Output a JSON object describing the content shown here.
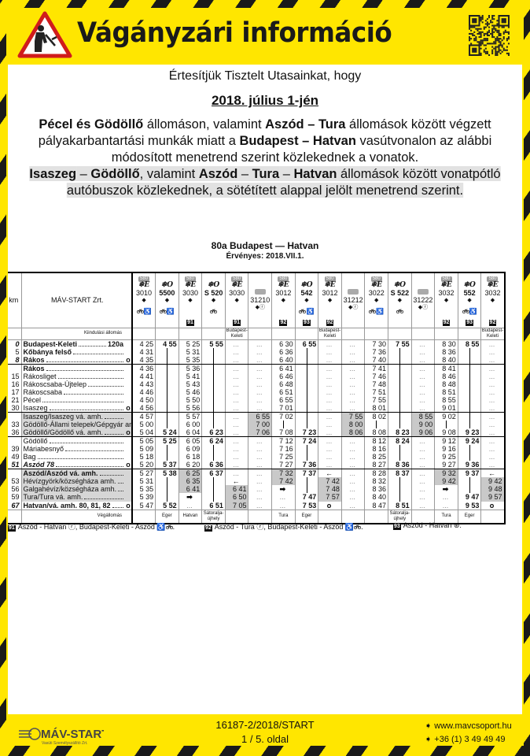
{
  "header": {
    "title": "Vágányzári információ"
  },
  "notice": {
    "intro": "Értesítjük Tisztelt Utasainkat, hogy",
    "date": "2018. július 1-jén",
    "lines": [
      [
        {
          "t": "Pécel és Gödöllő",
          "b": true
        },
        {
          "t": " állomáson, valamint ",
          "b": false
        },
        {
          "t": "Aszód – Tura",
          "b": true
        },
        {
          "t": " állomások között végzett",
          "b": false
        }
      ],
      [
        {
          "t": "pályakarbantartási munkák miatt a ",
          "b": false
        },
        {
          "t": "Budapest – Hatvan",
          "b": true
        },
        {
          "t": " vasútvonalon az alábbi",
          "b": false
        }
      ],
      [
        {
          "t": "módosított menetrend szerint közlekednek a vonatok.",
          "b": false
        }
      ],
      [
        {
          "t": "Isaszeg",
          "b": true,
          "hl": true
        },
        {
          "t": " – ",
          "b": false,
          "hl": true
        },
        {
          "t": "Gödöllő",
          "b": true,
          "hl": true
        },
        {
          "t": ", valamint ",
          "b": false,
          "hl": true
        },
        {
          "t": "Aszód",
          "b": true,
          "hl": true
        },
        {
          "t": " – ",
          "b": false,
          "hl": true
        },
        {
          "t": "Tura",
          "b": true,
          "hl": true
        },
        {
          "t": " – ",
          "b": false,
          "hl": true
        },
        {
          "t": "Hatvan",
          "b": true,
          "hl": true
        },
        {
          "t": " állomások között vonatpótló",
          "b": false,
          "hl": true
        }
      ],
      [
        {
          "t": "autóbuszok közlekednek, a sötétített alappal jelölt menetrend szerint.",
          "b": false,
          "hl": true
        }
      ]
    ]
  },
  "timetable": {
    "title": "80a Budapest — Hatvan",
    "valid": "Érvényes: 2018.VII.1.",
    "km_label": "km",
    "operator": "MÁV-START Zrt.",
    "origin_label": "Kiindulási állomás",
    "destination_label": "Végállomás",
    "stations": [
      {
        "km": "0",
        "name": "Budapest-Keleti",
        "bold": true,
        "ref": "120a",
        "kmi": true
      },
      {
        "km": "5",
        "name": "Kőbánya felső",
        "bold": true
      },
      {
        "km": "8",
        "name": "Rákos",
        "bold": true,
        "mark": "o",
        "kmi": true
      },
      {
        "km": "",
        "name": "Rákos",
        "bold": true
      },
      {
        "km": "15",
        "name": "Rákosliget"
      },
      {
        "km": "16",
        "name": "Rákoscsaba-Újtelep"
      },
      {
        "km": "17",
        "name": "Rákoscsaba"
      },
      {
        "km": "21",
        "name": "Pécel"
      },
      {
        "km": "30",
        "name": "Isaszeg",
        "mark": "o"
      },
      {
        "km": "",
        "name": "Isaszeg/Isaszeg vá. amh.",
        "shaded": true
      },
      {
        "km": "33",
        "name": "Gödöllő-Állami telepek/Gépgyár amh.",
        "shaded": true
      },
      {
        "km": "36",
        "name": "Gödöllő/Gödöllő vá. amh.",
        "mark": "o",
        "shaded": true
      },
      {
        "km": "",
        "name": "Gödöllő"
      },
      {
        "km": "39",
        "name": "Máriabesnyő"
      },
      {
        "km": "49",
        "name": "Bag"
      },
      {
        "km": "51",
        "name": "Aszód 78",
        "bold": true,
        "italic": true,
        "mark": "o",
        "kmi": true
      },
      {
        "km": "",
        "name": "Aszód/Aszód vá. amh.",
        "bold": true,
        "shaded": true
      },
      {
        "km": "53",
        "name": "Hévízgyörk/községháza amh.",
        "shaded": true
      },
      {
        "km": "56",
        "name": "Galgahévíz/községháza amh.",
        "shaded": true
      },
      {
        "km": "59",
        "name": "Tura/Tura vá. amh.",
        "shaded": true
      },
      {
        "km": "67",
        "name": "Hatvan/vá. amh. 80, 81, 82",
        "bold": true,
        "mark": "o",
        "kmi": true
      }
    ],
    "trains": [
      {
        "badge": "580",
        "symbol": "❄",
        "category": "E",
        "number": "3010",
        "direction": "◆",
        "amenities": "bike-wheelchair",
        "note": "",
        "origin": "",
        "destination": "",
        "bold": false,
        "bus_rows": [],
        "times": [
          "4 25",
          "4 31",
          "4 35",
          "4 36",
          "4 41",
          "4 43",
          "4 46",
          "4 50",
          "4 56",
          "4 57",
          "5 00",
          "5 04",
          "5 05",
          "5 09",
          "5 18",
          "5 20",
          "5 27",
          "5 31",
          "5 35",
          "5 39",
          "5 47"
        ]
      },
      {
        "badge": "",
        "symbol": "❄",
        "category": "O",
        "number": "5500",
        "direction": "◆",
        "amenities": "bike-wheelchair",
        "note": "",
        "origin": "",
        "destination": "Eger",
        "bold": true,
        "bus_rows": [],
        "times": [
          "4 55",
          "|",
          "|",
          "|",
          "|",
          "|",
          "|",
          "|",
          "|",
          "|",
          "|",
          "5 24",
          "5 25",
          "|",
          "|",
          "5 37",
          "5 38",
          "|",
          "|",
          "|",
          "5 52"
        ]
      },
      {
        "badge": "580",
        "symbol": "❄",
        "category": "E",
        "number": "3030",
        "direction": "◆",
        "amenities": "",
        "note": "91",
        "origin": "",
        "destination": "Hatvan",
        "bold": false,
        "bus_rows": [
          16,
          17,
          18
        ],
        "times": [
          "5 25",
          "5 31",
          "5 35",
          "5 36",
          "5 41",
          "5 43",
          "5 46",
          "5 50",
          "5 56",
          "5 57",
          "6 00",
          "6 04",
          "6 05",
          "6 09",
          "6 18",
          "6 20",
          "6 25",
          "6 35",
          "6 41",
          "➡",
          "..."
        ]
      },
      {
        "badge": "",
        "symbol": "❄",
        "category": "O",
        "number": "S 520",
        "direction": "◆",
        "amenities": "bike",
        "note": "",
        "origin": "",
        "destination": "Sátoralja-újhely",
        "bold": true,
        "bus_rows": [],
        "times": [
          "5 55",
          "|",
          "|",
          "|",
          "|",
          "|",
          "|",
          "|",
          "|",
          "|",
          "|",
          "6 23",
          "6 24",
          "|",
          "|",
          "6 36",
          "6 37",
          "|",
          "|",
          "|",
          "6 51"
        ]
      },
      {
        "badge": "580",
        "symbol": "❄",
        "category": "E",
        "number": "3030",
        "direction": "◆",
        "amenities": "",
        "note": "91",
        "origin": "Budapest-Keleti",
        "destination": "",
        "bold": false,
        "bus_rows": [
          18,
          19,
          20
        ],
        "times": [
          "...",
          "...",
          "...",
          "...",
          "...",
          "...",
          "...",
          "...",
          "...",
          "...",
          "...",
          "...",
          "...",
          "...",
          "...",
          "...",
          "...",
          "←",
          "6 41",
          "6 50",
          "7 05"
        ]
      },
      {
        "badge": "",
        "bus": true,
        "symbol": "",
        "category": "",
        "number": "31210",
        "direction": "◆ⓡ",
        "amenities": "",
        "note": "",
        "origin": "",
        "destination": "",
        "bold": false,
        "bus_rows": [
          9,
          10,
          11
        ],
        "times": [
          "...",
          "...",
          "...",
          "...",
          "...",
          "...",
          "...",
          "...",
          "...",
          "6 55",
          "7 00",
          "7 06",
          "...",
          "...",
          "...",
          "...",
          "...",
          "...",
          "...",
          "...",
          "..."
        ]
      },
      {
        "badge": "580",
        "symbol": "❄",
        "category": "E",
        "number": "3012",
        "direction": "◆",
        "amenities": "",
        "note": "92",
        "origin": "",
        "destination": "Tura",
        "bold": false,
        "bus_rows": [
          16,
          17
        ],
        "times": [
          "6 30",
          "6 36",
          "6 40",
          "6 41",
          "6 46",
          "6 48",
          "6 51",
          "6 55",
          "7 01",
          "7 02",
          "|",
          "7 08",
          "7 12",
          "7 16",
          "7 25",
          "7 27",
          "7 32",
          "7 42",
          "➡",
          "...",
          "..."
        ]
      },
      {
        "badge": "",
        "symbol": "❄",
        "category": "O",
        "number": "542",
        "direction": "◆",
        "amenities": "bike-wheelchair",
        "note": "93",
        "origin": "",
        "destination": "Eger",
        "bold": true,
        "bus_rows": [],
        "times": [
          "6 55",
          "|",
          "|",
          "|",
          "|",
          "|",
          "|",
          "|",
          "|",
          "|",
          "|",
          "7 23",
          "7 24",
          "|",
          "|",
          "7 36",
          "7 37",
          "|",
          "|",
          "7 47",
          "7 53"
        ]
      },
      {
        "badge": "580",
        "symbol": "❄",
        "category": "E",
        "number": "3012",
        "direction": "◆",
        "amenities": "",
        "note": "92",
        "origin": "Budapest-Keleti",
        "destination": "",
        "bold": false,
        "bus_rows": [
          17,
          18,
          19
        ],
        "times": [
          "...",
          "...",
          "...",
          "...",
          "...",
          "...",
          "...",
          "...",
          "...",
          "...",
          "...",
          "...",
          "...",
          "...",
          "...",
          "...",
          "←",
          "7 42",
          "7 48",
          "7 57",
          "o"
        ]
      },
      {
        "badge": "",
        "bus": true,
        "symbol": "",
        "category": "",
        "number": "31212",
        "direction": "◆ⓡ",
        "amenities": "",
        "note": "",
        "origin": "",
        "destination": "",
        "bold": false,
        "bus_rows": [
          9,
          10,
          11
        ],
        "times": [
          "...",
          "...",
          "...",
          "...",
          "...",
          "...",
          "...",
          "...",
          "...",
          "7 55",
          "8 00",
          "8 06",
          "...",
          "...",
          "...",
          "...",
          "...",
          "...",
          "...",
          "...",
          "..."
        ]
      },
      {
        "badge": "580",
        "symbol": "❄",
        "category": "E",
        "number": "3022",
        "direction": "◆",
        "amenities": "bike-wheelchair",
        "note": "",
        "origin": "",
        "destination": "",
        "bold": false,
        "bus_rows": [],
        "times": [
          "7 30",
          "7 36",
          "7 40",
          "7 41",
          "7 46",
          "7 48",
          "7 51",
          "7 55",
          "8 01",
          "8 02",
          "|",
          "8 08",
          "8 12",
          "8 16",
          "8 25",
          "8 27",
          "8 28",
          "8 32",
          "8 36",
          "8 40",
          "8 47"
        ]
      },
      {
        "badge": "",
        "symbol": "❄",
        "category": "O",
        "number": "S 522",
        "direction": "◆",
        "amenities": "bike",
        "note": "",
        "origin": "",
        "destination": "Sátoralja-újhely",
        "bold": true,
        "bus_rows": [],
        "times": [
          "7 55",
          "|",
          "|",
          "|",
          "|",
          "|",
          "|",
          "|",
          "|",
          "|",
          "|",
          "8 23",
          "8 24",
          "|",
          "|",
          "8 36",
          "8 37",
          "|",
          "|",
          "|",
          "8 51"
        ]
      },
      {
        "badge": "",
        "bus": true,
        "symbol": "",
        "category": "",
        "number": "31222",
        "direction": "◆ⓡ",
        "amenities": "",
        "note": "",
        "origin": "",
        "destination": "",
        "bold": false,
        "bus_rows": [
          9,
          10,
          11
        ],
        "times": [
          "...",
          "...",
          "...",
          "...",
          "...",
          "...",
          "...",
          "...",
          "...",
          "8 55",
          "9 00",
          "9 06",
          "...",
          "...",
          "...",
          "...",
          "...",
          "...",
          "...",
          "...",
          "..."
        ]
      },
      {
        "badge": "580",
        "symbol": "❄",
        "category": "E",
        "number": "3032",
        "direction": "◆",
        "amenities": "",
        "note": "92",
        "origin": "",
        "destination": "Tura",
        "bold": false,
        "bus_rows": [
          16,
          17
        ],
        "times": [
          "8 30",
          "8 36",
          "8 40",
          "8 41",
          "8 46",
          "8 48",
          "8 51",
          "8 55",
          "9 01",
          "9 02",
          "|",
          "9 08",
          "9 12",
          "9 16",
          "9 25",
          "9 27",
          "9 32",
          "9 42",
          "➡",
          "...",
          "..."
        ]
      },
      {
        "badge": "",
        "symbol": "❄",
        "category": "O",
        "number": "552",
        "direction": "◆",
        "amenities": "bike-wheelchair",
        "note": "93",
        "origin": "",
        "destination": "Eger",
        "bold": true,
        "bus_rows": [],
        "times": [
          "8 55",
          "|",
          "|",
          "|",
          "|",
          "|",
          "|",
          "|",
          "|",
          "|",
          "|",
          "9 23",
          "9 24",
          "|",
          "|",
          "9 36",
          "9 37",
          "|",
          "|",
          "9 47",
          "9 53"
        ]
      },
      {
        "badge": "580",
        "symbol": "❄",
        "category": "E",
        "number": "3032",
        "direction": "◆",
        "amenities": "",
        "note": "92",
        "origin": "Budapest-Keleti",
        "destination": "",
        "bold": false,
        "bus_rows": [
          17,
          18,
          19
        ],
        "times": [
          "...",
          "...",
          "...",
          "...",
          "...",
          "...",
          "...",
          "...",
          "...",
          "...",
          "...",
          "...",
          "...",
          "...",
          "...",
          "...",
          "←",
          "9 42",
          "9 48",
          "9 57",
          "o"
        ]
      }
    ],
    "footnotes": [
      {
        "id": "91",
        "text": "Aszód - Hatvan ⓡ, Budapest-Keleti - Aszód",
        "bike": true
      },
      {
        "id": "92",
        "text": "Aszód - Tura ⓡ, Budapest-Keleti - Aszód",
        "bike": true
      },
      {
        "id": "93",
        "text": "Aszód - Hatvan ⊛.",
        "bike": false
      }
    ]
  },
  "footer": {
    "doc_id": "16187-2/2018/START",
    "page": "1 / 5. oldal",
    "website": "www.mavcsoport.hu",
    "phone": "+36 (1) 3 49 49 49",
    "logo_text": "MÁV-START",
    "logo_sub": "Vasúti Személyszállító Zrt."
  },
  "colors": {
    "warning_yellow": "#ffe600",
    "stripe_black": "#1a1a1a",
    "bus_shade": "#c9c9c9"
  }
}
